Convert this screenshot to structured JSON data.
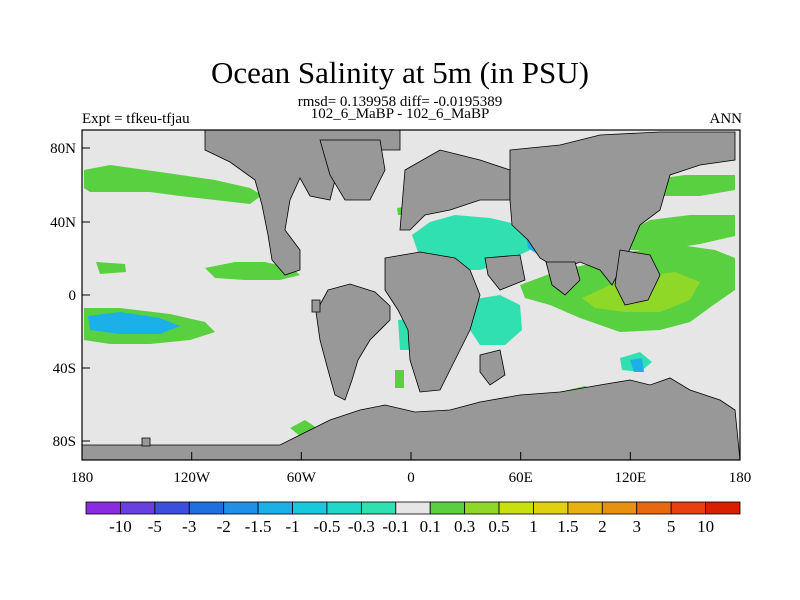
{
  "title": "Ocean Salinity at 5m (in PSU)",
  "subtitle_line1": "rmsd= 0.139958 diff= -0.0195389",
  "subtitle_line2": "102_6_MaBP - 102_6_MaBP",
  "left_label": "Expt = tfkeu-tfjau",
  "right_label": "ANN",
  "x_ticks": [
    "180",
    "120W",
    "60W",
    "0",
    "60E",
    "120E",
    "180"
  ],
  "y_ticks": [
    "80N",
    "40N",
    "0",
    "40S",
    "80S"
  ],
  "colorbar": {
    "labels": [
      "-10",
      "-5",
      "-3",
      "-2",
      "-1.5",
      "-1",
      "-0.5",
      "-0.3",
      "-0.1",
      "0.1",
      "0.3",
      "0.5",
      "1",
      "1.5",
      "2",
      "3",
      "5",
      "10"
    ],
    "colors": [
      "#8a2be2",
      "#6a3fe0",
      "#3c4fdc",
      "#1e6fe0",
      "#1e90e8",
      "#1cb0e8",
      "#18c8dc",
      "#20d8c8",
      "#30e0b0",
      "#e6e6e6",
      "#58d040",
      "#90d828",
      "#c8e010",
      "#e0d010",
      "#e8b010",
      "#e89010",
      "#e86810",
      "#e84010",
      "#d82000"
    ]
  },
  "map_colors": {
    "land": "#989898",
    "ocean_neutral": "#e6e6e6"
  }
}
